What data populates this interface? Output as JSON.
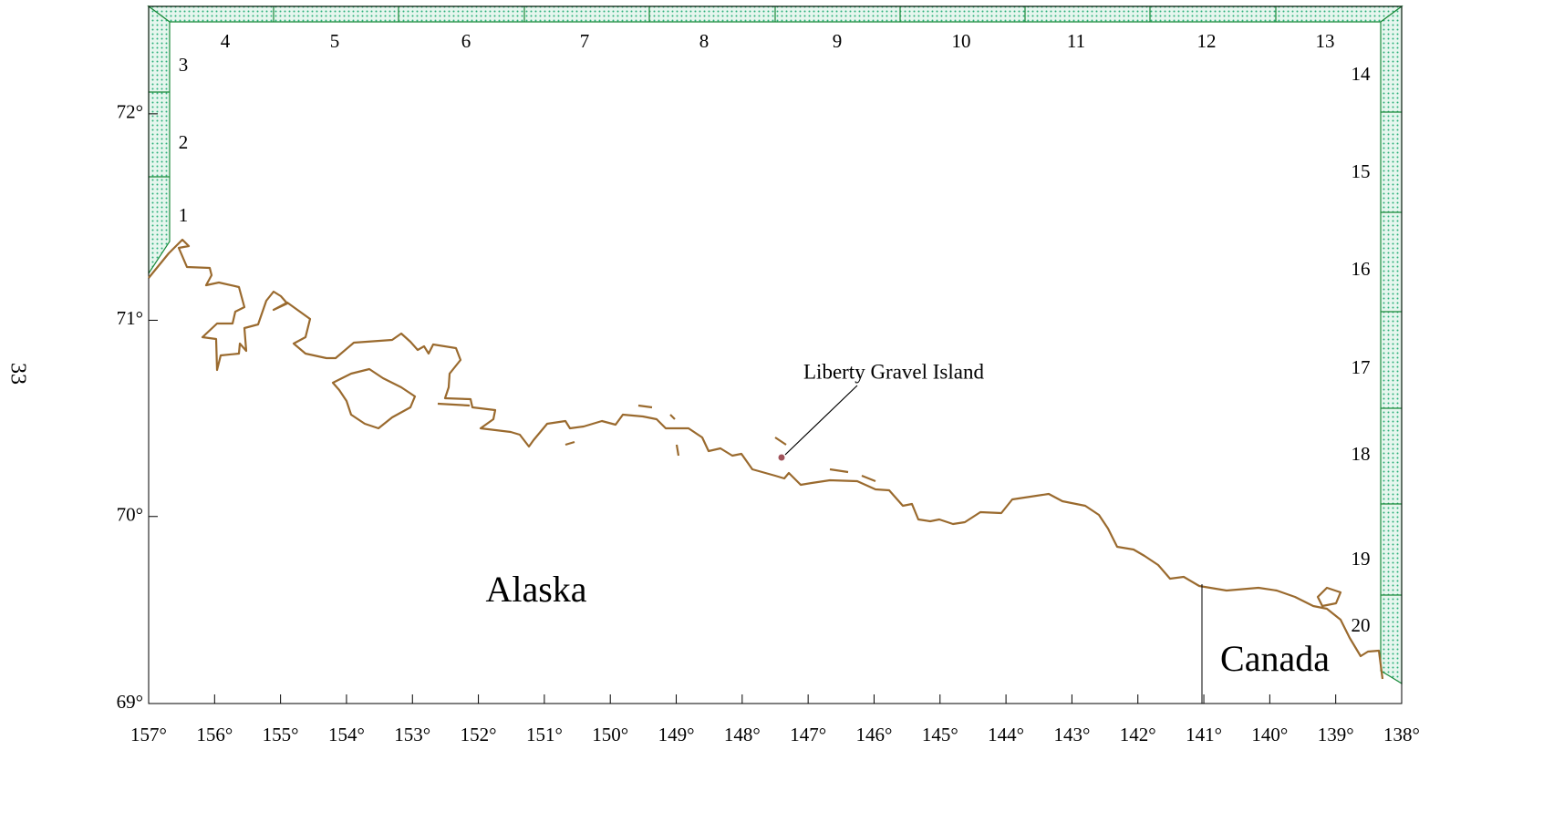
{
  "page_number": "33",
  "map": {
    "xlim": [
      157,
      138
    ],
    "ylim": [
      69,
      72.5
    ],
    "xticks": [
      {
        "value": 157,
        "label": "157°"
      },
      {
        "value": 156,
        "label": "156°"
      },
      {
        "value": 155,
        "label": "155°"
      },
      {
        "value": 154,
        "label": "154°"
      },
      {
        "value": 153,
        "label": "153°"
      },
      {
        "value": 152,
        "label": "152°"
      },
      {
        "value": 151,
        "label": "151°"
      },
      {
        "value": 150,
        "label": "150°"
      },
      {
        "value": 149,
        "label": "149°"
      },
      {
        "value": 148,
        "label": "148°"
      },
      {
        "value": 147,
        "label": "147°"
      },
      {
        "value": 146,
        "label": "146°"
      },
      {
        "value": 145,
        "label": "145°"
      },
      {
        "value": 144,
        "label": "144°"
      },
      {
        "value": 143,
        "label": "143°"
      },
      {
        "value": 142,
        "label": "142°"
      },
      {
        "value": 141,
        "label": "141°"
      },
      {
        "value": 140,
        "label": "140°"
      },
      {
        "value": 139,
        "label": "139°"
      },
      {
        "value": 138,
        "label": "138°"
      }
    ],
    "yticks": [
      {
        "value": 69,
        "label": "69°"
      },
      {
        "value": 70,
        "label": "70°"
      },
      {
        "value": 71,
        "label": "71°"
      },
      {
        "value": 72,
        "label": "72°"
      }
    ],
    "places": [
      "Alaska",
      "Canada"
    ],
    "annotation": "Liberty Gravel Island",
    "segments": [
      "1",
      "2",
      "3",
      "4",
      "5",
      "6",
      "7",
      "8",
      "9",
      "10",
      "11",
      "12",
      "13",
      "14",
      "15",
      "16",
      "17",
      "18",
      "19",
      "20"
    ]
  }
}
